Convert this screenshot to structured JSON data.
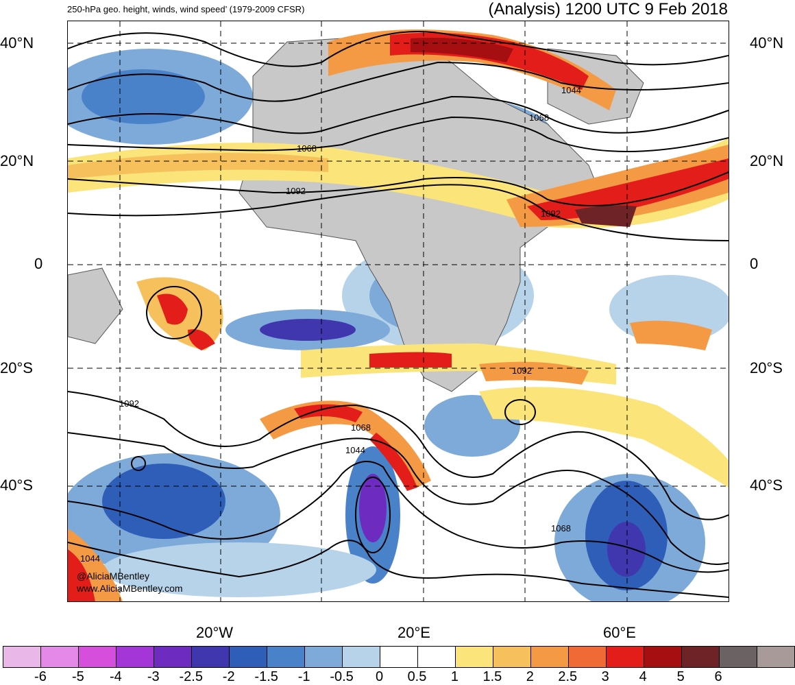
{
  "header": {
    "left_title": "250-hPa geo. height, winds, wind speed’ (1979-2009 CFSR)",
    "right_title": "(Analysis) 1200 UTC 9 Feb 2018"
  },
  "axes": {
    "lat_labels": [
      "40°N",
      "20°N",
      "0",
      "20°S",
      "40°S"
    ],
    "lon_labels": [
      "20°W",
      "20°E",
      "60°E"
    ]
  },
  "contours": {
    "height_labels": [
      "1068",
      "1092",
      "1044",
      "1068",
      "1092",
      "1092",
      "1092",
      "1068",
      "1044",
      "1068",
      "1044"
    ]
  },
  "credit": {
    "line1": "@AliciaMBentley",
    "line2": "www.AliciaMBentley.com"
  },
  "colorbar": {
    "colors": [
      "#e9b7e8",
      "#e489e7",
      "#d64fdc",
      "#a436d8",
      "#6d2bbf",
      "#4036ad",
      "#2f5eb9",
      "#4a82c9",
      "#7eaad9",
      "#b6d3ea",
      "#ffffff",
      "#ffffff",
      "#fbe57a",
      "#f6c15c",
      "#f49a45",
      "#ef6a35",
      "#e31e1a",
      "#a50f12",
      "#6e2426",
      "#6b6363",
      "#a79a99"
    ],
    "tick_labels": [
      "-6",
      "-5",
      "-4",
      "-3",
      "-2.5",
      "-2",
      "-1.5",
      "-1",
      "-0.5",
      "0",
      "0.5",
      "1",
      "1.5",
      "2",
      "2.5",
      "3",
      "4",
      "5",
      "6"
    ]
  },
  "colors": {
    "land": "#c8c8c8",
    "jet_red": "#e31e1a",
    "jet_orange": "#f49a45",
    "jet_yellow": "#fbe57a",
    "low_blue": "#2f5eb9",
    "low_purple": "#6d2bbf",
    "light_blue": "#b6d3ea"
  }
}
